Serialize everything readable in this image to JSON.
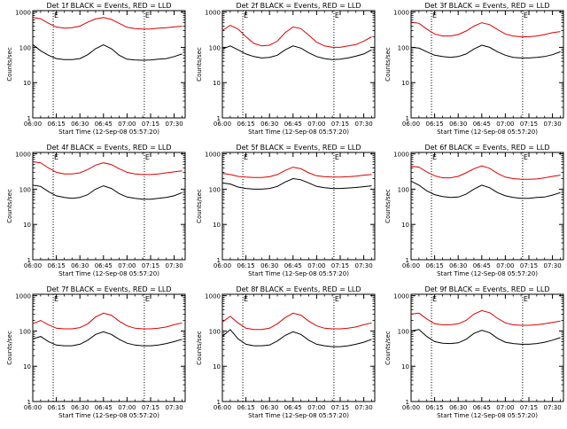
{
  "figure": {
    "xlabel": "Start Time (12-Sep-08 05:57:20)",
    "ylabel": "Counts/sec",
    "x_ticks": [
      "06:00",
      "06:15",
      "06:30",
      "06:45",
      "07:00",
      "07:15",
      "07:30"
    ],
    "y_ticks": [
      "1",
      "10",
      "100",
      "1000"
    ],
    "marker_labels": [
      "E",
      "E"
    ],
    "colors": {
      "events": "#000000",
      "lld": "#dd0000",
      "axes": "#000000",
      "background": "#ffffff"
    }
  },
  "chart_data": [
    {
      "type": "line",
      "title": "Det 1f BLACK = Events, RED = LLD",
      "x_unit": "HH:MM",
      "xlim": [
        "06:00",
        "07:37"
      ],
      "ylim": [
        1,
        1100
      ],
      "log_y": true,
      "vlines": [
        "06:13",
        "07:11"
      ],
      "series": [
        {
          "name": "Events",
          "color": "#000000",
          "x": [
            "06:00",
            "06:05",
            "06:10",
            "06:15",
            "06:20",
            "06:25",
            "06:30",
            "06:35",
            "06:40",
            "06:45",
            "06:50",
            "06:55",
            "07:00",
            "07:05",
            "07:10",
            "07:15",
            "07:20",
            "07:25",
            "07:30",
            "07:35"
          ],
          "values": [
            120,
            80,
            60,
            48,
            45,
            45,
            48,
            62,
            92,
            118,
            92,
            60,
            46,
            44,
            43,
            44,
            46,
            48,
            55,
            65
          ]
        },
        {
          "name": "LLD",
          "color": "#dd0000",
          "x": [
            "06:00",
            "06:05",
            "06:10",
            "06:15",
            "06:20",
            "06:25",
            "06:30",
            "06:35",
            "06:40",
            "06:45",
            "06:50",
            "06:55",
            "07:00",
            "07:05",
            "07:10",
            "07:15",
            "07:20",
            "07:25",
            "07:30",
            "07:35"
          ],
          "values": [
            700,
            650,
            480,
            380,
            350,
            360,
            400,
            520,
            640,
            700,
            620,
            480,
            370,
            340,
            330,
            330,
            350,
            360,
            380,
            400
          ]
        }
      ]
    },
    {
      "type": "line",
      "title": "Det 2f BLACK = Events, RED = LLD",
      "x_unit": "HH:MM",
      "xlim": [
        "06:00",
        "07:37"
      ],
      "ylim": [
        1,
        1100
      ],
      "log_y": true,
      "vlines": [
        "06:13",
        "07:11"
      ],
      "series": [
        {
          "name": "Events",
          "color": "#000000",
          "x": [
            "06:00",
            "06:05",
            "06:10",
            "06:15",
            "06:20",
            "06:25",
            "06:30",
            "06:35",
            "06:40",
            "06:45",
            "06:50",
            "06:55",
            "07:00",
            "07:05",
            "07:10",
            "07:15",
            "07:20",
            "07:25",
            "07:30",
            "07:35"
          ],
          "values": [
            90,
            110,
            85,
            65,
            55,
            50,
            52,
            60,
            85,
            110,
            95,
            70,
            55,
            48,
            45,
            46,
            50,
            56,
            65,
            85
          ]
        },
        {
          "name": "LLD",
          "color": "#dd0000",
          "x": [
            "06:00",
            "06:05",
            "06:10",
            "06:15",
            "06:20",
            "06:25",
            "06:30",
            "06:35",
            "06:40",
            "06:45",
            "06:50",
            "06:55",
            "07:00",
            "07:05",
            "07:10",
            "07:15",
            "07:20",
            "07:25",
            "07:30",
            "07:35"
          ],
          "values": [
            300,
            420,
            330,
            200,
            130,
            110,
            115,
            150,
            260,
            380,
            340,
            220,
            140,
            110,
            100,
            100,
            110,
            120,
            150,
            200
          ]
        }
      ]
    },
    {
      "type": "line",
      "title": "Det 3f BLACK = Events, RED = LLD",
      "x_unit": "HH:MM",
      "xlim": [
        "06:00",
        "07:37"
      ],
      "ylim": [
        1,
        1100
      ],
      "log_y": true,
      "vlines": [
        "06:13",
        "07:11"
      ],
      "series": [
        {
          "name": "Events",
          "color": "#000000",
          "x": [
            "06:00",
            "06:05",
            "06:10",
            "06:15",
            "06:20",
            "06:25",
            "06:30",
            "06:35",
            "06:40",
            "06:45",
            "06:50",
            "06:55",
            "07:00",
            "07:05",
            "07:10",
            "07:15",
            "07:20",
            "07:25",
            "07:30",
            "07:35"
          ],
          "values": [
            100,
            95,
            75,
            60,
            55,
            52,
            55,
            65,
            90,
            115,
            100,
            75,
            60,
            52,
            50,
            50,
            52,
            55,
            62,
            75
          ]
        },
        {
          "name": "LLD",
          "color": "#dd0000",
          "x": [
            "06:00",
            "06:05",
            "06:10",
            "06:15",
            "06:20",
            "06:25",
            "06:30",
            "06:35",
            "06:40",
            "06:45",
            "06:50",
            "06:55",
            "07:00",
            "07:05",
            "07:10",
            "07:15",
            "07:20",
            "07:25",
            "07:30",
            "07:35"
          ],
          "values": [
            520,
            480,
            330,
            240,
            210,
            210,
            230,
            290,
            400,
            500,
            440,
            320,
            240,
            210,
            200,
            200,
            210,
            230,
            260,
            280
          ]
        }
      ]
    },
    {
      "type": "line",
      "title": "Det 4f BLACK = Events, RED = LLD",
      "x_unit": "HH:MM",
      "xlim": [
        "06:00",
        "07:37"
      ],
      "ylim": [
        1,
        1100
      ],
      "log_y": true,
      "vlines": [
        "06:13",
        "07:11"
      ],
      "series": [
        {
          "name": "Events",
          "color": "#000000",
          "x": [
            "06:00",
            "06:05",
            "06:10",
            "06:15",
            "06:20",
            "06:25",
            "06:30",
            "06:35",
            "06:40",
            "06:45",
            "06:50",
            "06:55",
            "07:00",
            "07:05",
            "07:10",
            "07:15",
            "07:20",
            "07:25",
            "07:30",
            "07:35"
          ],
          "values": [
            130,
            120,
            85,
            65,
            58,
            55,
            58,
            70,
            100,
            125,
            105,
            75,
            60,
            55,
            52,
            52,
            55,
            58,
            65,
            80
          ]
        },
        {
          "name": "LLD",
          "color": "#dd0000",
          "x": [
            "06:00",
            "06:05",
            "06:10",
            "06:15",
            "06:20",
            "06:25",
            "06:30",
            "06:35",
            "06:40",
            "06:45",
            "06:50",
            "06:55",
            "07:00",
            "07:05",
            "07:10",
            "07:15",
            "07:20",
            "07:25",
            "07:30",
            "07:35"
          ],
          "values": [
            600,
            560,
            400,
            300,
            270,
            270,
            290,
            360,
            480,
            560,
            500,
            380,
            300,
            270,
            260,
            260,
            270,
            290,
            310,
            330
          ]
        }
      ]
    },
    {
      "type": "line",
      "title": "Det 5f BLACK = Events, RED = LLD",
      "x_unit": "HH:MM",
      "xlim": [
        "06:00",
        "07:37"
      ],
      "ylim": [
        1,
        1100
      ],
      "log_y": true,
      "vlines": [
        "06:13",
        "07:11"
      ],
      "series": [
        {
          "name": "Events",
          "color": "#000000",
          "x": [
            "06:00",
            "06:05",
            "06:10",
            "06:15",
            "06:20",
            "06:25",
            "06:30",
            "06:35",
            "06:40",
            "06:45",
            "06:50",
            "06:55",
            "07:00",
            "07:05",
            "07:10",
            "07:15",
            "07:20",
            "07:25",
            "07:30",
            "07:35"
          ],
          "values": [
            150,
            140,
            115,
            105,
            100,
            100,
            105,
            120,
            160,
            200,
            185,
            150,
            120,
            110,
            105,
            105,
            108,
            112,
            118,
            125
          ]
        },
        {
          "name": "LLD",
          "color": "#dd0000",
          "x": [
            "06:00",
            "06:05",
            "06:10",
            "06:15",
            "06:20",
            "06:25",
            "06:30",
            "06:35",
            "06:40",
            "06:45",
            "06:50",
            "06:55",
            "07:00",
            "07:05",
            "07:10",
            "07:15",
            "07:20",
            "07:25",
            "07:30",
            "07:35"
          ],
          "values": [
            280,
            260,
            230,
            220,
            215,
            215,
            225,
            260,
            340,
            420,
            380,
            290,
            240,
            225,
            220,
            220,
            225,
            235,
            250,
            260
          ]
        }
      ]
    },
    {
      "type": "line",
      "title": "Det 6f BLACK = Events, RED = LLD",
      "x_unit": "HH:MM",
      "xlim": [
        "06:00",
        "07:37"
      ],
      "ylim": [
        1,
        1100
      ],
      "log_y": true,
      "vlines": [
        "06:13",
        "07:11"
      ],
      "series": [
        {
          "name": "Events",
          "color": "#000000",
          "x": [
            "06:00",
            "06:05",
            "06:10",
            "06:15",
            "06:20",
            "06:25",
            "06:30",
            "06:35",
            "06:40",
            "06:45",
            "06:50",
            "06:55",
            "07:00",
            "07:05",
            "07:10",
            "07:15",
            "07:20",
            "07:25",
            "07:30",
            "07:35"
          ],
          "values": [
            170,
            130,
            90,
            70,
            62,
            58,
            60,
            72,
            100,
            130,
            110,
            80,
            65,
            58,
            55,
            55,
            58,
            60,
            68,
            80
          ]
        },
        {
          "name": "LLD",
          "color": "#dd0000",
          "x": [
            "06:00",
            "06:05",
            "06:10",
            "06:15",
            "06:20",
            "06:25",
            "06:30",
            "06:35",
            "06:40",
            "06:45",
            "06:50",
            "06:55",
            "07:00",
            "07:05",
            "07:10",
            "07:15",
            "07:20",
            "07:25",
            "07:30",
            "07:35"
          ],
          "values": [
            450,
            420,
            310,
            240,
            210,
            210,
            230,
            290,
            380,
            460,
            390,
            280,
            220,
            200,
            190,
            190,
            195,
            210,
            230,
            250
          ]
        }
      ]
    },
    {
      "type": "line",
      "title": "Det 7f BLACK = Events, RED = LLD",
      "x_unit": "HH:MM",
      "xlim": [
        "06:00",
        "07:37"
      ],
      "ylim": [
        1,
        1100
      ],
      "log_y": true,
      "vlines": [
        "06:13",
        "07:11"
      ],
      "series": [
        {
          "name": "Events",
          "color": "#000000",
          "x": [
            "06:00",
            "06:05",
            "06:10",
            "06:15",
            "06:20",
            "06:25",
            "06:30",
            "06:35",
            "06:40",
            "06:45",
            "06:50",
            "06:55",
            "07:00",
            "07:05",
            "07:10",
            "07:15",
            "07:20",
            "07:25",
            "07:30",
            "07:35"
          ],
          "values": [
            60,
            70,
            50,
            40,
            38,
            38,
            42,
            55,
            80,
            95,
            80,
            58,
            45,
            40,
            38,
            38,
            40,
            44,
            50,
            58
          ]
        },
        {
          "name": "LLD",
          "color": "#dd0000",
          "x": [
            "06:00",
            "06:05",
            "06:10",
            "06:15",
            "06:20",
            "06:25",
            "06:30",
            "06:35",
            "06:40",
            "06:45",
            "06:50",
            "06:55",
            "07:00",
            "07:05",
            "07:10",
            "07:15",
            "07:20",
            "07:25",
            "07:30",
            "07:35"
          ],
          "values": [
            160,
            200,
            150,
            120,
            115,
            115,
            125,
            160,
            250,
            320,
            280,
            190,
            140,
            120,
            115,
            115,
            120,
            130,
            150,
            170
          ]
        }
      ]
    },
    {
      "type": "line",
      "title": "Det 8f BLACK = Events, RED = LLD",
      "x_unit": "HH:MM",
      "xlim": [
        "06:00",
        "07:37"
      ],
      "ylim": [
        1,
        1100
      ],
      "log_y": true,
      "vlines": [
        "06:13",
        "07:11"
      ],
      "series": [
        {
          "name": "Events",
          "color": "#000000",
          "x": [
            "06:00",
            "06:05",
            "06:10",
            "06:15",
            "06:20",
            "06:25",
            "06:30",
            "06:35",
            "06:40",
            "06:45",
            "06:50",
            "06:55",
            "07:00",
            "07:05",
            "07:10",
            "07:15",
            "07:20",
            "07:25",
            "07:30",
            "07:35"
          ],
          "values": [
            70,
            110,
            60,
            42,
            38,
            38,
            40,
            52,
            75,
            95,
            80,
            55,
            42,
            38,
            36,
            36,
            38,
            42,
            48,
            58
          ]
        },
        {
          "name": "LLD",
          "color": "#dd0000",
          "x": [
            "06:00",
            "06:05",
            "06:10",
            "06:15",
            "06:20",
            "06:25",
            "06:30",
            "06:35",
            "06:40",
            "06:45",
            "06:50",
            "06:55",
            "07:00",
            "07:05",
            "07:10",
            "07:15",
            "07:20",
            "07:25",
            "07:30",
            "07:35"
          ],
          "values": [
            180,
            260,
            170,
            120,
            110,
            110,
            120,
            160,
            240,
            320,
            280,
            190,
            140,
            120,
            115,
            115,
            120,
            130,
            150,
            170
          ]
        }
      ]
    },
    {
      "type": "line",
      "title": "Det 9f BLACK = Events, RED = LLD",
      "x_unit": "HH:MM",
      "xlim": [
        "06:00",
        "07:37"
      ],
      "ylim": [
        1,
        1100
      ],
      "log_y": true,
      "vlines": [
        "06:13",
        "07:11"
      ],
      "series": [
        {
          "name": "Events",
          "color": "#000000",
          "x": [
            "06:00",
            "06:05",
            "06:10",
            "06:15",
            "06:20",
            "06:25",
            "06:30",
            "06:35",
            "06:40",
            "06:45",
            "06:50",
            "06:55",
            "07:00",
            "07:05",
            "07:10",
            "07:15",
            "07:20",
            "07:25",
            "07:30",
            "07:35"
          ],
          "values": [
            100,
            110,
            70,
            50,
            45,
            44,
            46,
            58,
            85,
            105,
            90,
            62,
            48,
            44,
            42,
            42,
            44,
            48,
            55,
            65
          ]
        },
        {
          "name": "LLD",
          "color": "#dd0000",
          "x": [
            "06:00",
            "06:05",
            "06:10",
            "06:15",
            "06:20",
            "06:25",
            "06:30",
            "06:35",
            "06:40",
            "06:45",
            "06:50",
            "06:55",
            "07:00",
            "07:05",
            "07:10",
            "07:15",
            "07:20",
            "07:25",
            "07:30",
            "07:35"
          ],
          "values": [
            300,
            320,
            220,
            160,
            150,
            150,
            160,
            200,
            300,
            380,
            330,
            230,
            170,
            150,
            145,
            145,
            150,
            160,
            175,
            190
          ]
        }
      ]
    }
  ]
}
